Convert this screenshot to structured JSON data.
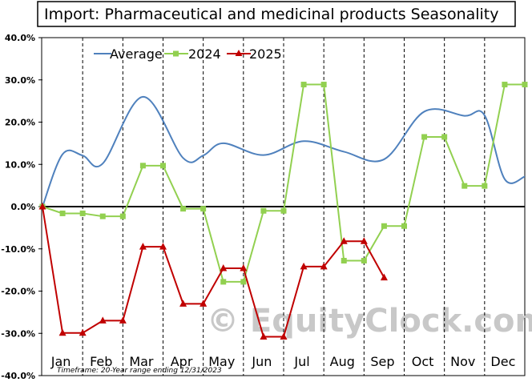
{
  "chart_data": {
    "type": "line",
    "title": "Import: Pharmaceutical and medicinal products Seasonality",
    "categories": [
      "Jan",
      "Feb",
      "Mar",
      "Apr",
      "May",
      "Jun",
      "Jul",
      "Aug",
      "Sep",
      "Oct",
      "Nov",
      "Dec"
    ],
    "y_ticks": [
      "40.0%",
      "30.0%",
      "20.0%",
      "10.0%",
      "0.0%",
      "-10.0%",
      "-20.0%",
      "-30.0%",
      "-40.0%"
    ],
    "ylim": [
      -40,
      40
    ],
    "xlim": [
      0,
      12
    ],
    "grid": "vertical dashed month dividers",
    "legend_position": "top-left",
    "series": [
      {
        "name": "Average",
        "color": "#4f81bd",
        "style": "smooth line",
        "x": [
          0,
          0.5,
          1.0,
          1.5,
          2.5,
          3.5,
          4.0,
          4.5,
          5.5,
          6.5,
          7.5,
          8.5,
          9.5,
          10.5,
          11.0,
          11.5,
          12.0
        ],
        "values": [
          0,
          12.4,
          12.1,
          10.2,
          26.0,
          11.5,
          12.1,
          15.0,
          12.2,
          15.5,
          13.0,
          11.2,
          22.5,
          21.5,
          21.6,
          6.5,
          7.1
        ]
      },
      {
        "name": "2024",
        "color": "#92d050",
        "marker": "square",
        "x": [
          0,
          0.5,
          1.0,
          1.5,
          2.0,
          2.5,
          3.0,
          3.5,
          4.0,
          4.5,
          5.0,
          5.5,
          6.0,
          6.5,
          7.0,
          7.5,
          8.0,
          8.5,
          9.0,
          9.5,
          10.0,
          10.5,
          11.0,
          11.5,
          12.0
        ],
        "values": [
          0,
          -1.6,
          -1.6,
          -2.3,
          -2.3,
          9.7,
          9.7,
          -0.5,
          -0.5,
          -17.8,
          -17.8,
          -1.0,
          -1.0,
          28.9,
          28.9,
          -12.8,
          -12.8,
          -4.6,
          -4.6,
          16.5,
          16.5,
          4.9,
          4.9,
          28.9,
          28.9
        ]
      },
      {
        "name": "2025",
        "color": "#c00000",
        "marker": "triangle",
        "x": [
          0,
          0.5,
          1.0,
          1.5,
          2.0,
          2.5,
          3.0,
          3.5,
          4.0,
          4.5,
          5.0,
          5.5,
          6.0,
          6.5,
          7.0,
          7.5,
          8.0,
          8.5
        ],
        "values": [
          0,
          -29.9,
          -29.9,
          -27.0,
          -27.0,
          -9.5,
          -9.5,
          -23.0,
          -23.0,
          -14.6,
          -14.6,
          -30.8,
          -30.8,
          -14.2,
          -14.2,
          -8.2,
          -8.2,
          -16.8
        ]
      }
    ],
    "footnote": "Timeframe: 20-Year range ending 12/31/2023",
    "watermark": "© EquityClock.com"
  }
}
